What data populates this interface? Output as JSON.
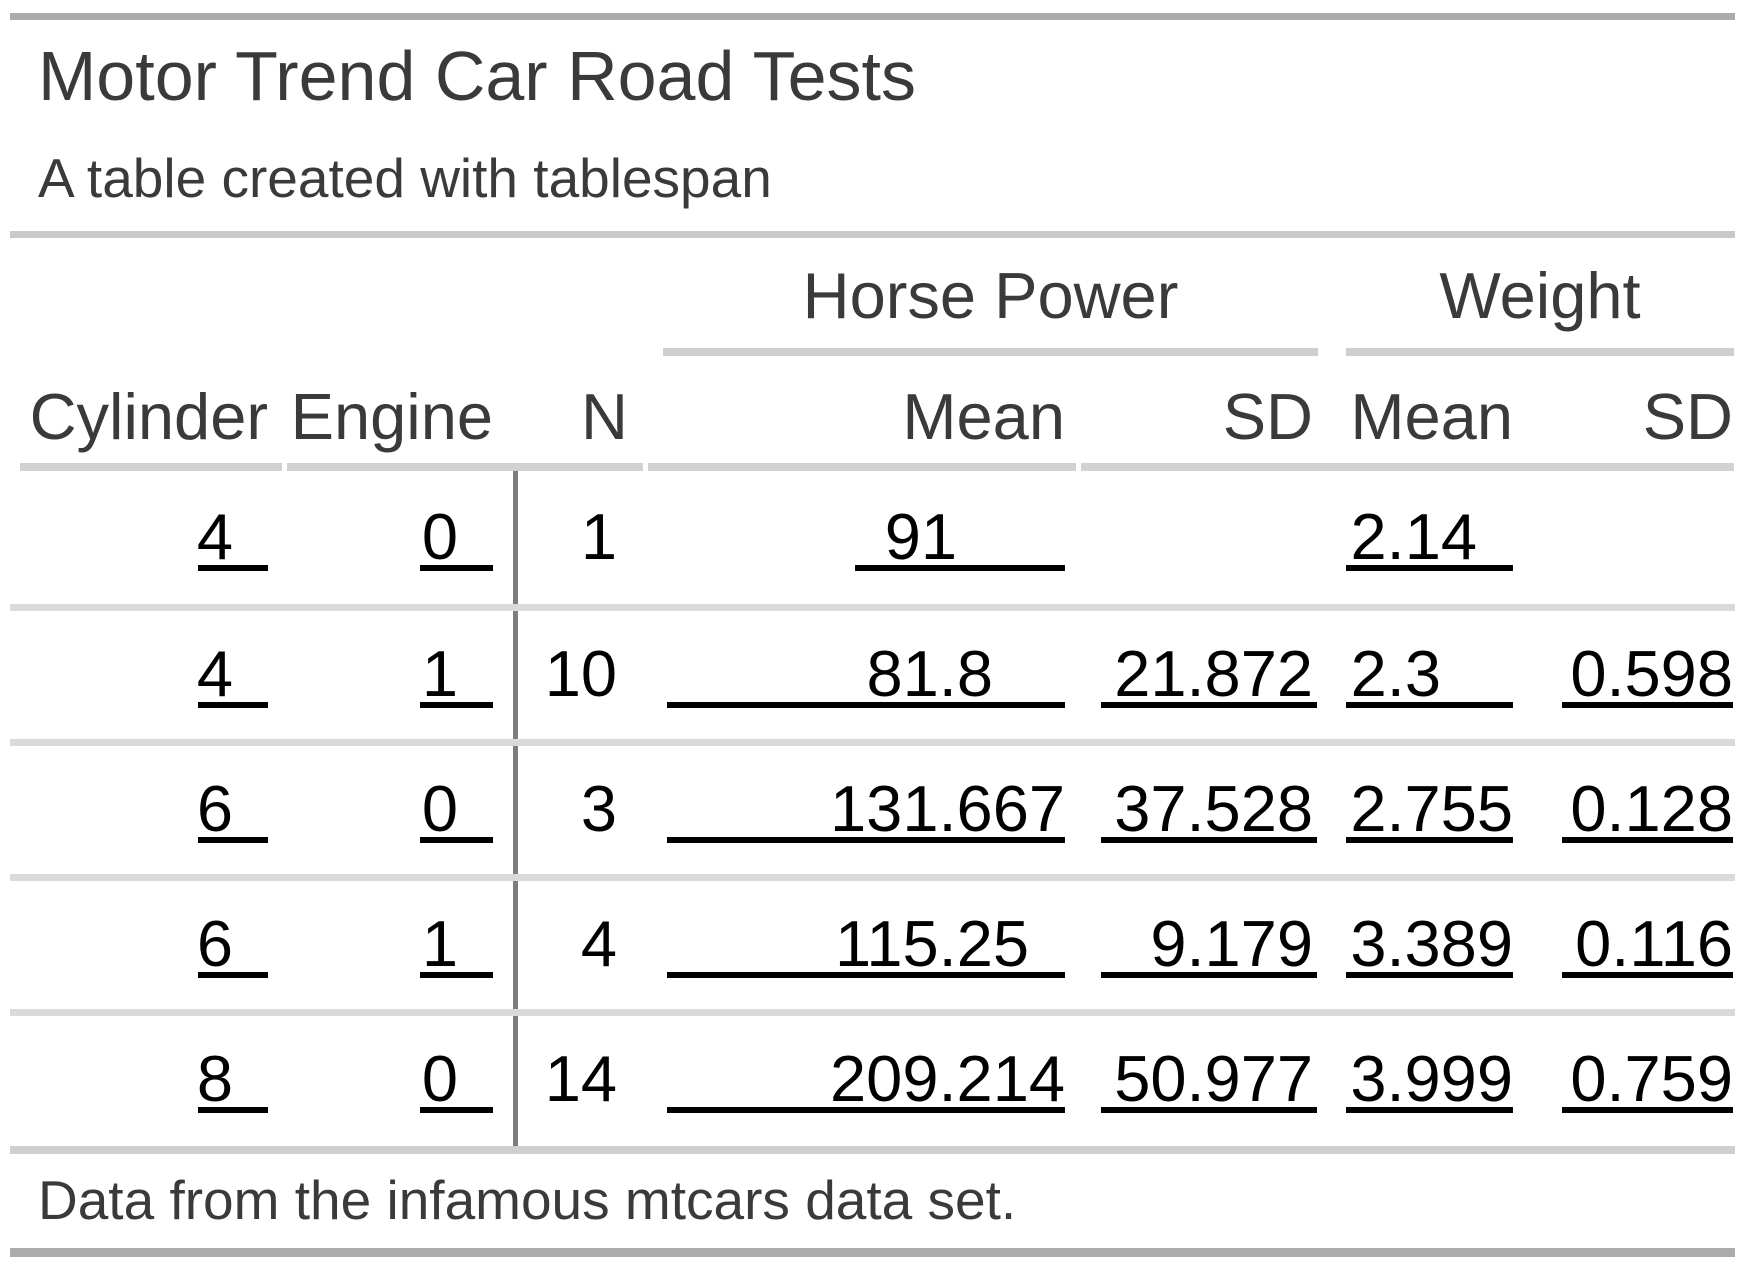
{
  "table": {
    "title": "Motor Trend Car Road Tests",
    "subtitle": "A table created with tablespan",
    "footnote": "Data from the infamous mtcars data set.",
    "spanners": [
      {
        "label": "Horse Power",
        "columns": [
          "hp_mean",
          "hp_sd"
        ]
      },
      {
        "label": "Weight",
        "columns": [
          "wt_mean",
          "wt_sd"
        ]
      }
    ],
    "columns": [
      {
        "key": "cylinder",
        "label": "Cylinder"
      },
      {
        "key": "engine",
        "label": "Engine"
      },
      {
        "key": "n",
        "label": "N"
      },
      {
        "key": "hp_mean",
        "label": "Mean"
      },
      {
        "key": "hp_sd",
        "label": "SD"
      },
      {
        "key": "wt_mean",
        "label": "Mean"
      },
      {
        "key": "wt_sd",
        "label": "SD"
      }
    ],
    "rows": [
      {
        "cylinder": "4",
        "engine": "0",
        "n": "1",
        "hp_mean": "91",
        "hp_sd": "",
        "wt_mean": "2.14",
        "wt_sd": ""
      },
      {
        "cylinder": "4",
        "engine": "1",
        "n": "10",
        "hp_mean": "81.8",
        "hp_sd": "21.872",
        "wt_mean": "2.3",
        "wt_sd": "0.598"
      },
      {
        "cylinder": "6",
        "engine": "0",
        "n": "3",
        "hp_mean": "131.667",
        "hp_sd": "37.528",
        "wt_mean": "2.755",
        "wt_sd": "0.128"
      },
      {
        "cylinder": "6",
        "engine": "1",
        "n": "4",
        "hp_mean": "115.25",
        "hp_sd": "9.179",
        "wt_mean": "3.389",
        "wt_sd": "0.116"
      },
      {
        "cylinder": "8",
        "engine": "0",
        "n": "14",
        "hp_mean": "209.214",
        "hp_sd": "50.977",
        "wt_mean": "3.999",
        "wt_sd": "0.759"
      }
    ]
  },
  "colors": {
    "bar": "#ababab",
    "subtitle_line": "#c9c9c9",
    "spanner_line": "#cfcfcf",
    "header_line": "#d2d2d2",
    "row_line": "#dadada",
    "bottom_line": "#cfcfcf",
    "vertical_line": "#7d7d7d",
    "heading_text": "#3a3a3a",
    "data_text": "#000000",
    "background": "#ffffff"
  }
}
